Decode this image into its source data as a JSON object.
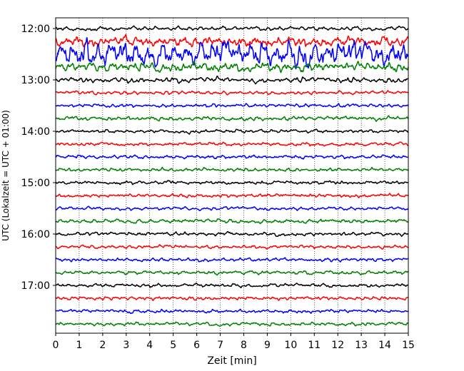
{
  "chart_data": {
    "type": "line",
    "title": "",
    "xlabel": "Zeit  [min]",
    "ylabel": "UTC (Lokalzeit = UTC + 01:00)",
    "xlim": [
      0,
      15
    ],
    "x_ticks": [
      0,
      1,
      2,
      3,
      4,
      5,
      6,
      7,
      8,
      9,
      10,
      11,
      12,
      13,
      14,
      15
    ],
    "x_tick_labels": [
      "0",
      "1",
      "2",
      "3",
      "4",
      "5",
      "6",
      "7",
      "8",
      "9",
      "10",
      "11",
      "12",
      "13",
      "14",
      "15"
    ],
    "y_ticks": [
      "12:00",
      "13:00",
      "14:00",
      "15:00",
      "16:00",
      "17:00"
    ],
    "grid": "vertical-dotted",
    "colors": [
      "#000000",
      "#ff0000",
      "#0000ff",
      "#008000"
    ],
    "traces": [
      {
        "start": "12:00",
        "color": "#000000",
        "amplitude": 0.35
      },
      {
        "start": "12:15",
        "color": "#ff0000",
        "amplitude": 0.9
      },
      {
        "start": "12:30",
        "color": "#0000ff",
        "amplitude": 2.2
      },
      {
        "start": "12:45",
        "color": "#008000",
        "amplitude": 0.8
      },
      {
        "start": "13:00",
        "color": "#000000",
        "amplitude": 0.45
      },
      {
        "start": "13:15",
        "color": "#ff0000",
        "amplitude": 0.3
      },
      {
        "start": "13:30",
        "color": "#0000ff",
        "amplitude": 0.3
      },
      {
        "start": "13:45",
        "color": "#008000",
        "amplitude": 0.35
      },
      {
        "start": "14:00",
        "color": "#000000",
        "amplitude": 0.3
      },
      {
        "start": "14:15",
        "color": "#ff0000",
        "amplitude": 0.3
      },
      {
        "start": "14:30",
        "color": "#0000ff",
        "amplitude": 0.3
      },
      {
        "start": "14:45",
        "color": "#008000",
        "amplitude": 0.3
      },
      {
        "start": "15:00",
        "color": "#000000",
        "amplitude": 0.3
      },
      {
        "start": "15:15",
        "color": "#ff0000",
        "amplitude": 0.3
      },
      {
        "start": "15:30",
        "color": "#0000ff",
        "amplitude": 0.3
      },
      {
        "start": "15:45",
        "color": "#008000",
        "amplitude": 0.35
      },
      {
        "start": "16:00",
        "color": "#000000",
        "amplitude": 0.3
      },
      {
        "start": "16:15",
        "color": "#ff0000",
        "amplitude": 0.3
      },
      {
        "start": "16:30",
        "color": "#0000ff",
        "amplitude": 0.3
      },
      {
        "start": "16:45",
        "color": "#008000",
        "amplitude": 0.3
      },
      {
        "start": "17:00",
        "color": "#000000",
        "amplitude": 0.3
      },
      {
        "start": "17:15",
        "color": "#ff0000",
        "amplitude": 0.3
      },
      {
        "start": "17:30",
        "color": "#0000ff",
        "amplitude": 0.3
      },
      {
        "start": "17:45",
        "color": "#008000",
        "amplitude": 0.3
      }
    ]
  }
}
